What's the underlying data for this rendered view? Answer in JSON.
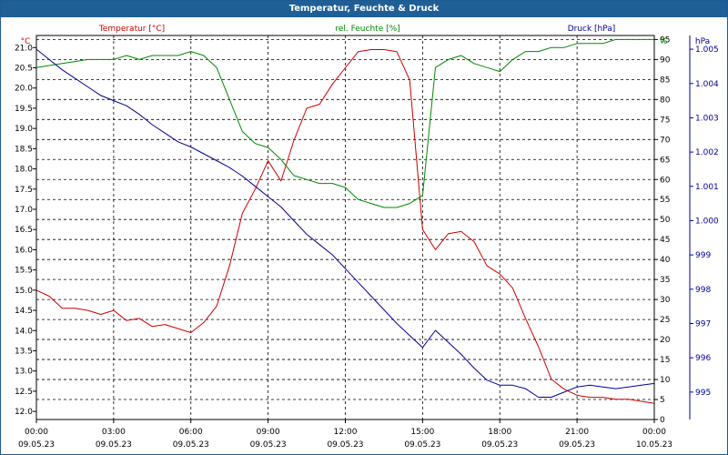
{
  "window": {
    "title": "Temperatur, Feuchte & Druck"
  },
  "chart_data": {
    "type": "line",
    "title": "Temperatur, Feuchte & Druck",
    "grid": true,
    "x_ticks": [
      {
        "time": "00:00",
        "date": "09.05.23"
      },
      {
        "time": "03:00",
        "date": "09.05.23"
      },
      {
        "time": "06:00",
        "date": "09.05.23"
      },
      {
        "time": "09:00",
        "date": "09.05.23"
      },
      {
        "time": "12:00",
        "date": "09.05.23"
      },
      {
        "time": "15:00",
        "date": "09.05.23"
      },
      {
        "time": "18:00",
        "date": "09.05.23"
      },
      {
        "time": "21:00",
        "date": "09.05.23"
      },
      {
        "time": "00:00",
        "date": "10.05.23"
      }
    ],
    "xlim_hours": [
      0,
      24
    ],
    "axes": {
      "temperature": {
        "label": "Temperatur [°C]",
        "unit": "°C",
        "color": "#cc0000",
        "ylim": [
          11.8,
          21.3
        ],
        "ticks": [
          12.0,
          12.5,
          13.0,
          13.5,
          14.0,
          14.5,
          15.0,
          15.5,
          16.0,
          16.5,
          17.0,
          17.5,
          18.0,
          18.5,
          19.0,
          19.5,
          20.0,
          20.5,
          21.0
        ],
        "tick_labels": [
          "12.0",
          "12.5",
          "13.0",
          "13.5",
          "14.0",
          "14.5",
          "15.0",
          "15.5",
          "16.0",
          "16.5",
          "17.0",
          "17.5",
          "18.0",
          "18.5",
          "19.0",
          "19.5",
          "20.0",
          "20.5",
          "21.0"
        ]
      },
      "humidity": {
        "label": "rel. Feuchte [%]",
        "unit": "%",
        "color": "#008800",
        "ylim": [
          0,
          96
        ],
        "ticks": [
          0,
          5,
          10,
          15,
          20,
          25,
          30,
          35,
          40,
          45,
          50,
          55,
          60,
          65,
          70,
          75,
          80,
          85,
          90,
          95
        ],
        "tick_labels": [
          "0",
          "5",
          "10",
          "15",
          "20",
          "25",
          "30",
          "35",
          "40",
          "45",
          "50",
          "55",
          "60",
          "65",
          "70",
          "75",
          "80",
          "85",
          "90",
          "95"
        ]
      },
      "pressure": {
        "label": "Druck [hPa]",
        "unit": "hPa",
        "color": "#000099",
        "ylim": [
          994.2,
          1005.4
        ],
        "ticks": [
          995,
          996,
          997,
          998,
          999,
          1000,
          1001,
          1002,
          1003,
          1004,
          1005
        ],
        "tick_labels": [
          "995",
          "996",
          "997",
          "998",
          "999",
          "1.000",
          "1.001",
          "1.002",
          "1.003",
          "1.004",
          "1.005"
        ]
      }
    },
    "series": [
      {
        "name": "Temperatur [°C]",
        "axis": "temperature",
        "color": "#cc0000",
        "x": [
          0,
          0.5,
          1,
          1.5,
          2,
          2.5,
          3,
          3.5,
          4,
          4.5,
          5,
          5.5,
          6,
          6.5,
          7,
          7.5,
          8,
          8.5,
          9,
          9.5,
          10,
          10.5,
          11,
          11.5,
          12,
          12.5,
          13,
          13.5,
          14,
          14.5,
          15,
          15.5,
          16,
          16.5,
          17,
          17.5,
          18,
          18.5,
          19,
          19.5,
          20,
          20.5,
          21,
          21.5,
          22,
          22.5,
          23,
          23.5,
          24
        ],
        "values": [
          15.0,
          14.85,
          14.55,
          14.55,
          14.5,
          14.4,
          14.5,
          14.25,
          14.3,
          14.1,
          14.15,
          14.05,
          13.95,
          14.2,
          14.6,
          15.6,
          16.9,
          17.5,
          18.2,
          17.7,
          18.7,
          19.5,
          19.6,
          20.1,
          20.5,
          20.9,
          20.95,
          20.95,
          20.9,
          20.2,
          16.5,
          16.0,
          16.4,
          16.45,
          16.2,
          15.6,
          15.4,
          15.05,
          14.3,
          13.6,
          12.8,
          12.55,
          12.4,
          12.35,
          12.35,
          12.3,
          12.3,
          12.25,
          12.2
        ]
      },
      {
        "name": "rel. Feuchte [%]",
        "axis": "humidity",
        "color": "#008800",
        "x": [
          0,
          0.5,
          1,
          1.5,
          2,
          2.5,
          3,
          3.5,
          4,
          4.5,
          5,
          5.5,
          6,
          6.5,
          7,
          7.5,
          8,
          8.5,
          9,
          9.5,
          10,
          10.5,
          11,
          11.5,
          12,
          12.5,
          13,
          13.5,
          14,
          14.5,
          15,
          15.5,
          16,
          16.5,
          17,
          17.5,
          18,
          18.5,
          19,
          19.5,
          20,
          20.5,
          21,
          21.5,
          22,
          22.5,
          23,
          23.5,
          24
        ],
        "values": [
          88,
          88.5,
          89,
          89.5,
          90,
          90,
          90,
          91,
          90,
          91,
          91,
          91,
          92,
          91,
          88,
          80,
          72,
          69,
          68,
          65,
          61,
          60,
          59,
          59,
          58,
          55,
          54,
          53,
          53,
          54,
          56,
          88,
          90,
          91,
          89,
          88,
          87,
          90,
          92,
          92,
          93,
          93,
          94,
          94,
          94,
          95,
          95,
          95,
          95
        ]
      },
      {
        "name": "Druck [hPa]",
        "axis": "pressure",
        "color": "#000099",
        "x": [
          0,
          0.5,
          1,
          1.5,
          2,
          2.5,
          3,
          3.5,
          4,
          4.5,
          5,
          5.5,
          6,
          6.5,
          7,
          7.5,
          8,
          8.5,
          9,
          9.5,
          10,
          10.5,
          11,
          11.5,
          12,
          12.5,
          13,
          13.5,
          14,
          14.5,
          15,
          15.5,
          16,
          16.5,
          17,
          17.5,
          18,
          18.5,
          19,
          19.5,
          20,
          20.5,
          21,
          21.5,
          22,
          22.5,
          23,
          23.5,
          24
        ],
        "values": [
          1005.0,
          1004.7,
          1004.4,
          1004.15,
          1003.9,
          1003.65,
          1003.5,
          1003.35,
          1003.1,
          1002.8,
          1002.55,
          1002.3,
          1002.15,
          1001.95,
          1001.75,
          1001.55,
          1001.3,
          1001.0,
          1000.7,
          1000.4,
          1000.0,
          999.6,
          999.3,
          999.0,
          998.6,
          998.2,
          997.8,
          997.4,
          997.0,
          996.65,
          996.3,
          996.8,
          996.45,
          996.1,
          995.7,
          995.35,
          995.2,
          995.2,
          995.1,
          994.85,
          994.85,
          995.0,
          995.15,
          995.2,
          995.15,
          995.1,
          995.15,
          995.2,
          995.25
        ]
      }
    ]
  }
}
